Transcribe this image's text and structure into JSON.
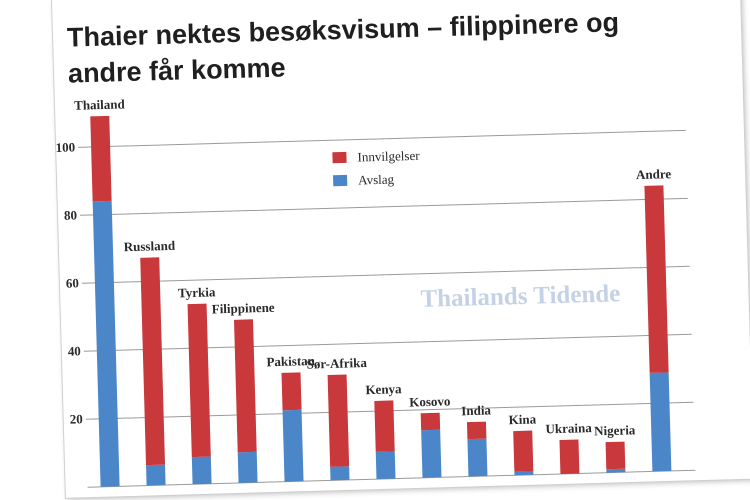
{
  "title": "Thaier nektes besøksvisum – filippinere og andre får komme",
  "watermark": "Thailands Tidende",
  "colors": {
    "innvilgelser": "#c9393c",
    "avslag": "#4b86c8",
    "grid": "#9a9a9a"
  },
  "chart_data": {
    "type": "bar",
    "stacked": true,
    "categories": [
      "Thailand",
      "Russland",
      "Tyrkia",
      "Filippinene",
      "Pakistan",
      "Sør-Afrika",
      "Kenya",
      "Kosovo",
      "India",
      "Kina",
      "Ukraina",
      "Nigeria",
      "Andre"
    ],
    "series": [
      {
        "name": "Avslag",
        "values": [
          84,
          6,
          8,
          9,
          21,
          4,
          8,
          14,
          11,
          1,
          0,
          1,
          29
        ]
      },
      {
        "name": "Innvilgelser",
        "values": [
          25,
          61,
          45,
          39,
          11,
          27,
          15,
          5,
          5,
          12,
          10,
          8,
          55
        ]
      }
    ],
    "yticks": [
      20,
      40,
      60,
      80,
      100
    ],
    "ylim": [
      0,
      120
    ],
    "grid": true,
    "legend": {
      "placement": "top-center",
      "entries": [
        "Innvilgelser",
        "Avslag"
      ]
    }
  }
}
